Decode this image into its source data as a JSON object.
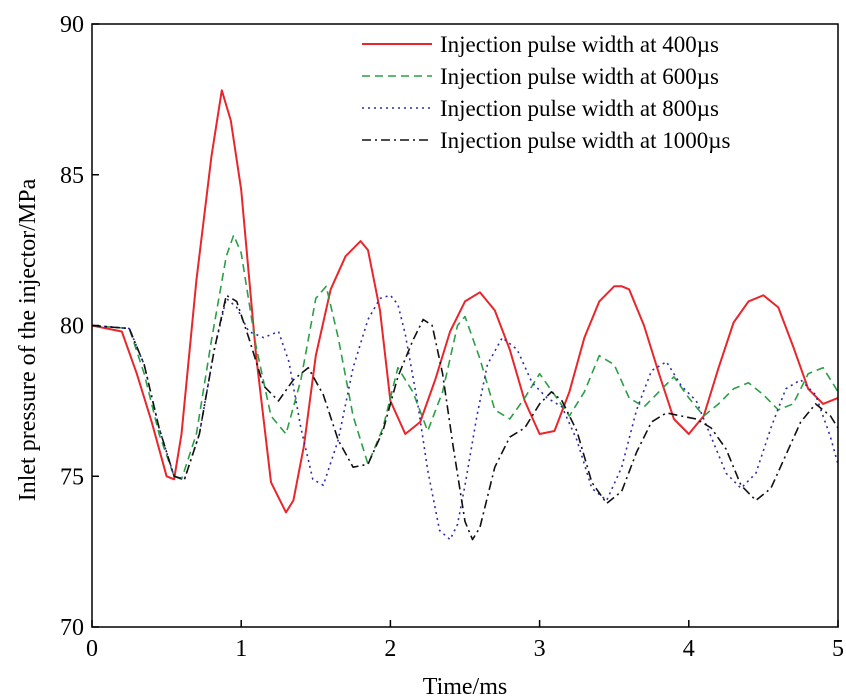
{
  "chart_data": {
    "type": "line",
    "xlabel": "Time/ms",
    "ylabel": "Inlet pressure of the injector/MPa",
    "xlim": [
      0,
      5
    ],
    "ylim": [
      70,
      90
    ],
    "xticks": [
      0,
      1,
      2,
      3,
      4,
      5
    ],
    "yticks": [
      70,
      75,
      80,
      85,
      90
    ],
    "grid": false,
    "legend_position": "top-right",
    "series": [
      {
        "name": "Injection pulse width at 400µs",
        "color": "#e8262b",
        "dash": "solid",
        "x": [
          0,
          0.2,
          0.3,
          0.4,
          0.5,
          0.55,
          0.6,
          0.7,
          0.8,
          0.87,
          0.93,
          1.0,
          1.1,
          1.2,
          1.3,
          1.35,
          1.42,
          1.5,
          1.6,
          1.7,
          1.8,
          1.85,
          1.93,
          2.0,
          2.1,
          2.2,
          2.3,
          2.4,
          2.5,
          2.6,
          2.7,
          2.8,
          2.9,
          3.0,
          3.1,
          3.2,
          3.3,
          3.4,
          3.5,
          3.55,
          3.6,
          3.7,
          3.8,
          3.9,
          4.0,
          4.1,
          4.2,
          4.3,
          4.4,
          4.5,
          4.6,
          4.7,
          4.8,
          4.9,
          5.0
        ],
        "y": [
          80.0,
          79.8,
          78.4,
          76.8,
          75.0,
          74.9,
          76.4,
          81.5,
          85.6,
          87.8,
          86.8,
          84.5,
          79.0,
          74.8,
          73.8,
          74.2,
          76.0,
          79.0,
          81.2,
          82.3,
          82.8,
          82.5,
          80.5,
          77.5,
          76.4,
          76.8,
          78.2,
          79.8,
          80.8,
          81.1,
          80.5,
          79.2,
          77.5,
          76.4,
          76.5,
          77.8,
          79.6,
          80.8,
          81.3,
          81.3,
          81.2,
          80.0,
          78.4,
          76.9,
          76.4,
          77.0,
          78.6,
          80.1,
          80.8,
          81.0,
          80.6,
          79.3,
          77.9,
          77.4,
          77.6
        ]
      },
      {
        "name": "Injection pulse width at 600µs",
        "color": "#2c9e47",
        "dash": "dashed",
        "x": [
          0,
          0.25,
          0.35,
          0.45,
          0.55,
          0.6,
          0.7,
          0.8,
          0.9,
          0.95,
          1.0,
          1.1,
          1.2,
          1.3,
          1.4,
          1.5,
          1.57,
          1.65,
          1.75,
          1.85,
          1.95,
          2.05,
          2.15,
          2.25,
          2.35,
          2.45,
          2.5,
          2.6,
          2.7,
          2.8,
          2.9,
          3.0,
          3.1,
          3.2,
          3.3,
          3.4,
          3.5,
          3.6,
          3.7,
          3.8,
          3.9,
          4.0,
          4.1,
          4.2,
          4.3,
          4.4,
          4.5,
          4.6,
          4.7,
          4.8,
          4.9,
          5.0
        ],
        "y": [
          80.0,
          79.9,
          78.4,
          76.4,
          75.0,
          74.9,
          76.4,
          79.5,
          82.3,
          83.0,
          82.4,
          79.3,
          77.0,
          76.4,
          78.2,
          80.9,
          81.3,
          79.6,
          77.0,
          75.4,
          76.6,
          78.6,
          77.8,
          76.5,
          77.8,
          80.0,
          80.3,
          78.9,
          77.2,
          76.9,
          77.6,
          78.4,
          77.7,
          77.0,
          77.8,
          79.0,
          78.7,
          77.6,
          77.3,
          77.8,
          78.3,
          77.6,
          77.0,
          77.4,
          77.9,
          78.1,
          77.7,
          77.2,
          77.4,
          78.4,
          78.6,
          77.8
        ]
      },
      {
        "name": "Injection pulse width at 800µs",
        "color": "#2c2ca8",
        "dash": "dotted",
        "x": [
          0,
          0.25,
          0.35,
          0.45,
          0.55,
          0.62,
          0.72,
          0.82,
          0.9,
          0.97,
          1.05,
          1.15,
          1.25,
          1.32,
          1.4,
          1.48,
          1.55,
          1.65,
          1.75,
          1.85,
          1.93,
          2.0,
          2.05,
          2.1,
          2.18,
          2.25,
          2.33,
          2.4,
          2.45,
          2.5,
          2.58,
          2.65,
          2.75,
          2.85,
          2.95,
          3.05,
          3.15,
          3.25,
          3.35,
          3.45,
          3.55,
          3.65,
          3.75,
          3.85,
          3.95,
          4.05,
          4.15,
          4.25,
          4.35,
          4.45,
          4.55,
          4.65,
          4.75,
          4.85,
          4.95,
          5.0
        ],
        "y": [
          80.0,
          79.9,
          78.7,
          76.6,
          75.0,
          74.9,
          76.4,
          79.2,
          80.9,
          80.6,
          79.8,
          79.6,
          79.8,
          78.8,
          76.6,
          74.9,
          74.7,
          76.2,
          78.6,
          80.2,
          80.9,
          81.0,
          80.7,
          79.7,
          77.5,
          75.2,
          73.2,
          72.9,
          73.4,
          74.7,
          77.0,
          78.7,
          79.6,
          79.2,
          78.1,
          77.6,
          77.3,
          76.2,
          74.6,
          74.2,
          75.3,
          77.2,
          78.5,
          78.8,
          78.0,
          77.5,
          76.3,
          75.1,
          74.6,
          75.1,
          76.6,
          77.9,
          78.2,
          77.7,
          76.3,
          75.4
        ]
      },
      {
        "name": "Injection pulse width at 1000µs",
        "color": "#111111",
        "dash": "dashdot",
        "x": [
          0,
          0.25,
          0.35,
          0.45,
          0.55,
          0.62,
          0.72,
          0.82,
          0.9,
          0.97,
          1.05,
          1.15,
          1.25,
          1.35,
          1.45,
          1.55,
          1.65,
          1.75,
          1.85,
          1.95,
          2.05,
          2.15,
          2.22,
          2.28,
          2.35,
          2.42,
          2.5,
          2.55,
          2.6,
          2.7,
          2.8,
          2.9,
          3.0,
          3.08,
          3.15,
          3.25,
          3.35,
          3.45,
          3.55,
          3.65,
          3.75,
          3.85,
          3.95,
          4.05,
          4.15,
          4.25,
          4.35,
          4.45,
          4.55,
          4.65,
          4.75,
          4.85,
          4.95,
          5.0
        ],
        "y": [
          80.0,
          79.9,
          78.7,
          76.6,
          75.0,
          74.9,
          76.4,
          79.2,
          81.0,
          80.8,
          79.6,
          78.0,
          77.5,
          78.2,
          78.6,
          77.7,
          76.2,
          75.3,
          75.4,
          76.5,
          78.3,
          79.5,
          80.2,
          80.0,
          78.4,
          76.0,
          73.5,
          72.9,
          73.3,
          75.3,
          76.3,
          76.6,
          77.4,
          77.8,
          77.5,
          76.5,
          74.8,
          74.1,
          74.5,
          75.8,
          76.8,
          77.1,
          77.0,
          76.9,
          76.6,
          75.9,
          74.7,
          74.2,
          74.6,
          75.7,
          76.8,
          77.4,
          77.0,
          76.6
        ]
      }
    ]
  }
}
